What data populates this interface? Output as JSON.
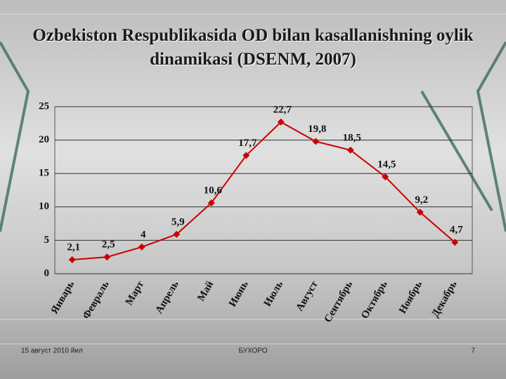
{
  "chart_data": {
    "type": "line",
    "title": "Ozbekiston Respublikasida OD bilan kasallanishning oylik dinamikasi (DSENM, 2007)",
    "categories": [
      "Январь",
      "Февраль",
      "Март",
      "Апрель",
      "Май",
      "Июнь",
      "Июль",
      "Август",
      "Сентябрь",
      "Октябрь",
      "Ноябрь",
      "Декабрь"
    ],
    "values": [
      2.1,
      2.5,
      4,
      5.9,
      10.6,
      17.7,
      22.7,
      19.8,
      18.5,
      14.5,
      9.2,
      4.7
    ],
    "value_labels": [
      "2,1",
      "2,5",
      "4",
      "5,9",
      "10,6",
      "17,7",
      "22,7",
      "19,8",
      "18,5",
      "14,5",
      "9,2",
      "4,7"
    ],
    "color": "#cc0000",
    "ylim": [
      0,
      25
    ],
    "yticks": [
      0,
      5,
      10,
      15,
      20,
      25
    ],
    "grid": true
  },
  "footer": {
    "date": "15 август 2010 йил",
    "place": "БУХОРО",
    "page": "7"
  }
}
